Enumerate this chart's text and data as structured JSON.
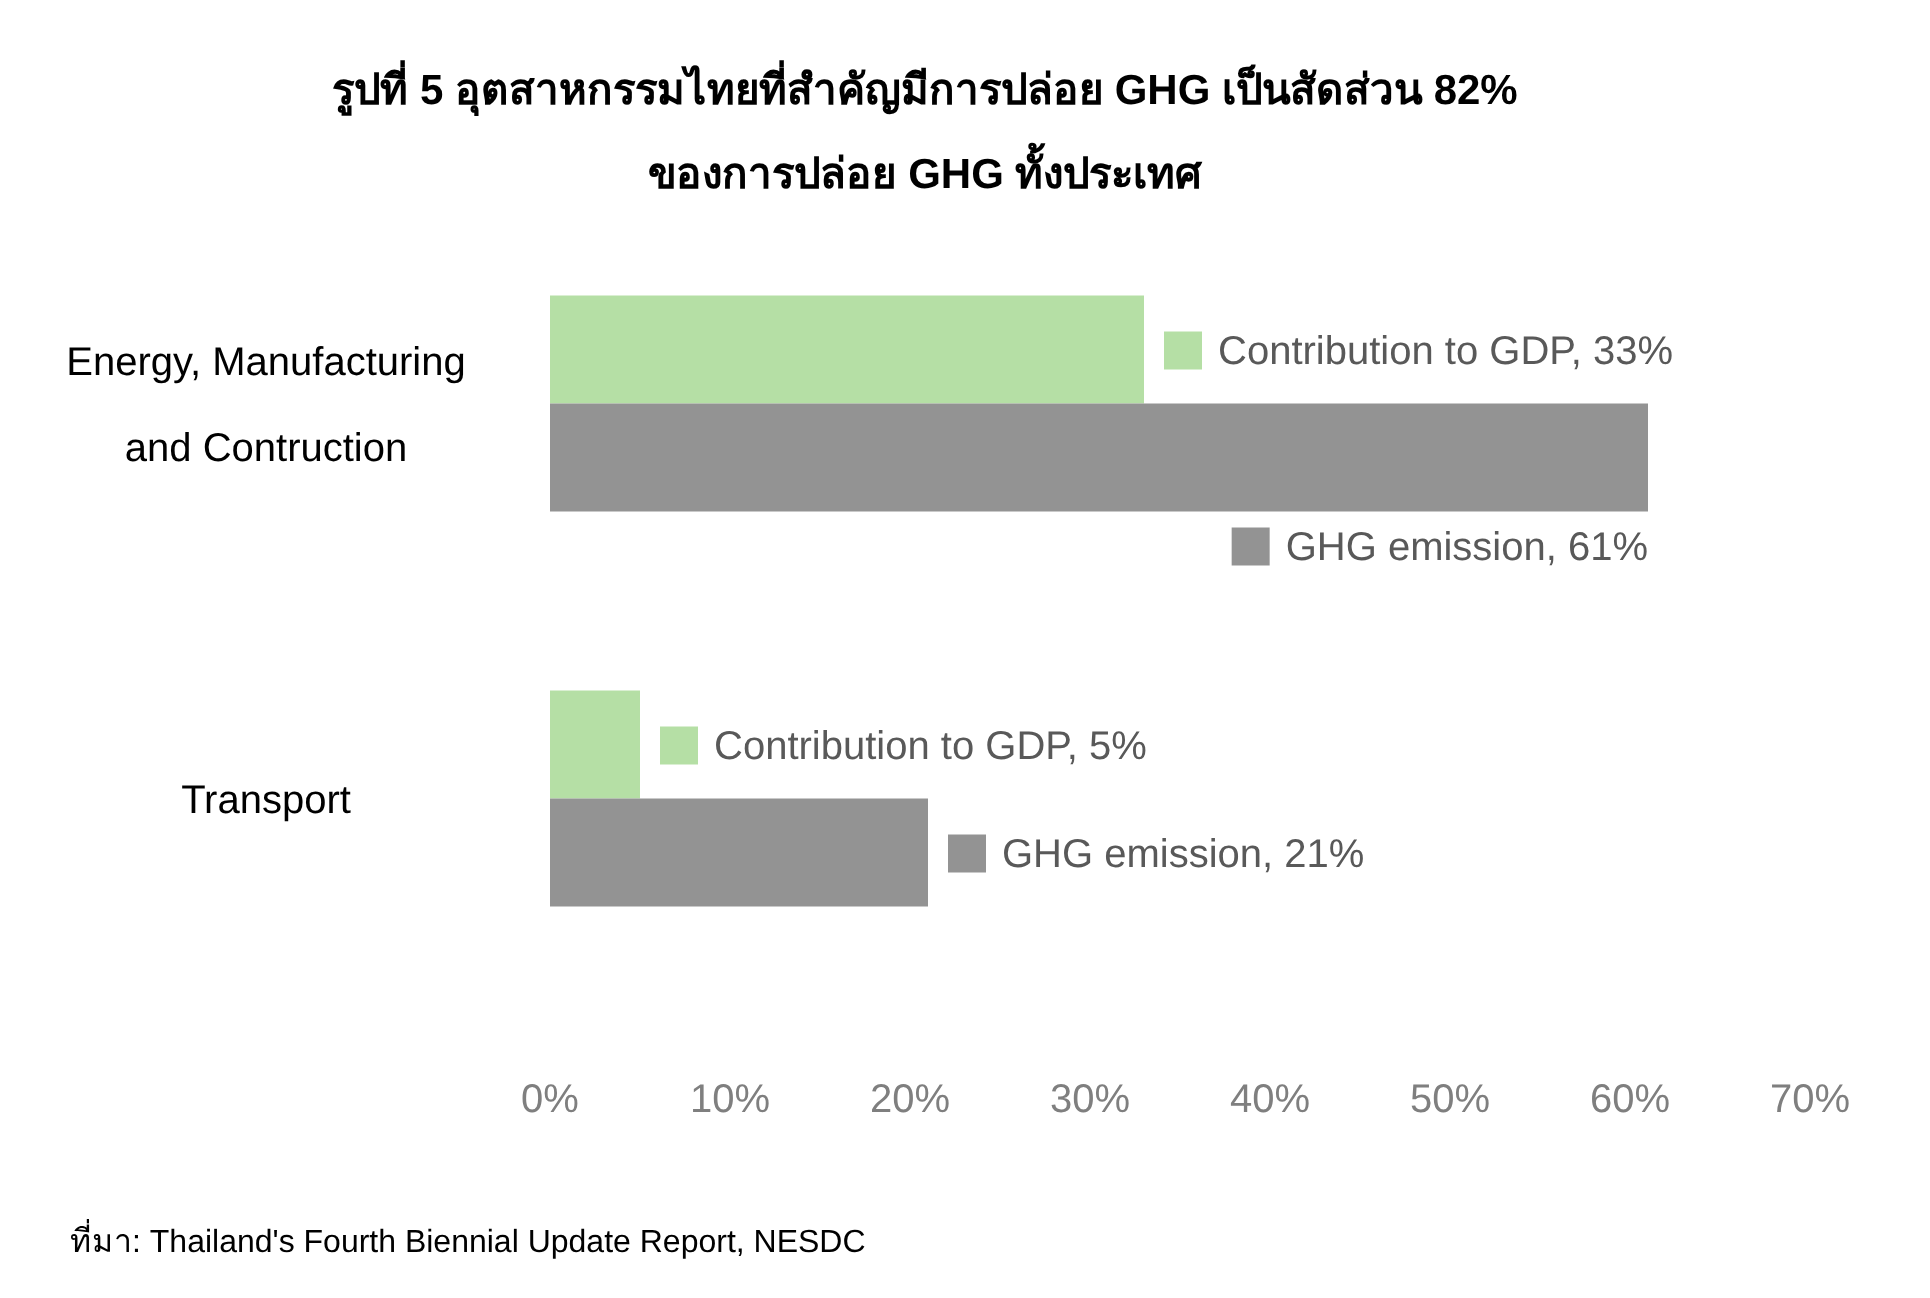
{
  "chart_data": {
    "type": "bar",
    "orientation": "horizontal",
    "title": "รูปที่ 5 อุตสาหกรรมไทยที่สำคัญมีการปล่อย GHG เป็นสัดส่วน 82%",
    "subtitle": "ของการปล่อย GHG ทั้งประเทศ",
    "categories": [
      "Energy, Manufacturing and Contruction",
      "Transport"
    ],
    "series": [
      {
        "color": "#b5dfa5",
        "values": [
          33,
          5
        ],
        "value_labels": [
          "Contribution to GDP, 33%",
          "Contribution to GDP, 5%"
        ]
      },
      {
        "color": "#939393",
        "values": [
          61,
          21
        ],
        "value_labels": [
          "GHG emission, 61%",
          "GHG emission, 21%"
        ]
      }
    ],
    "xlim": [
      0,
      70
    ],
    "xticks": [
      {
        "value": 0,
        "label": "0%"
      },
      {
        "value": 10,
        "label": "10%"
      },
      {
        "value": 20,
        "label": "20%"
      },
      {
        "value": 30,
        "label": "30%"
      },
      {
        "value": 40,
        "label": "40%"
      },
      {
        "value": 50,
        "label": "50%"
      },
      {
        "value": 60,
        "label": "60%"
      },
      {
        "value": 70,
        "label": "70%"
      }
    ],
    "grid": false,
    "legend": false,
    "annotations": [
      "ที่มา: Thailand's Fourth Biennial Update Report, NESDC"
    ]
  }
}
